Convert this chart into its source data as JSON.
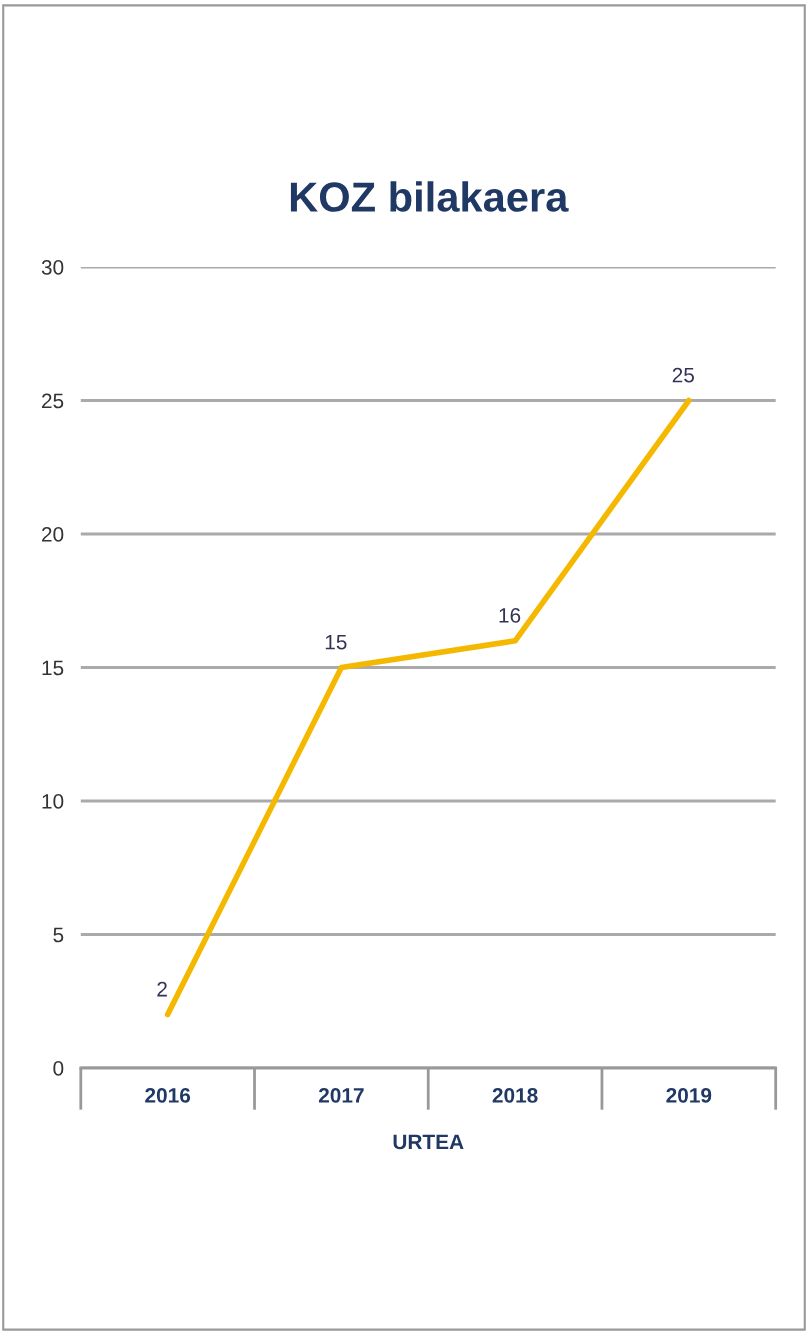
{
  "chart_data": {
    "type": "line",
    "title": "KOZ bilakaera",
    "xlabel": "URTEA",
    "categories": [
      "2016",
      "2017",
      "2018",
      "2019"
    ],
    "series": [
      {
        "color": "#f5b800",
        "values": [
          2,
          15,
          16,
          25
        ]
      }
    ],
    "ylim": [
      0,
      30
    ],
    "yticks": [
      0,
      5,
      10,
      15,
      20,
      25,
      30
    ],
    "grid": "y",
    "data_labels": true
  }
}
